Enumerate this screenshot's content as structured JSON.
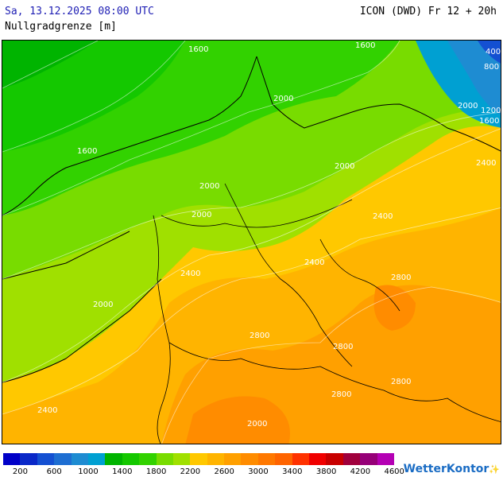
{
  "header": {
    "timestamp": "Sa, 13.12.2025 08:00 UTC",
    "model_run": "ICON (DWD) Fr 12 + 20h",
    "parameter": "Nullgradgrenze [m]"
  },
  "map": {
    "contour_labels": [
      {
        "text": "1600"
      },
      {
        "text": "1600"
      },
      {
        "text": "1600"
      },
      {
        "text": "400"
      },
      {
        "text": "800"
      },
      {
        "text": "1200"
      },
      {
        "text": "1600"
      },
      {
        "text": "2000"
      },
      {
        "text": "2000"
      },
      {
        "text": "2000"
      },
      {
        "text": "2000"
      },
      {
        "text": "2000"
      },
      {
        "text": "2400"
      },
      {
        "text": "2400"
      },
      {
        "text": "2400"
      },
      {
        "text": "2400"
      },
      {
        "text": "2800"
      },
      {
        "text": "2800"
      },
      {
        "text": "2800"
      },
      {
        "text": "2800"
      },
      {
        "text": "2800"
      },
      {
        "text": "2400"
      },
      {
        "text": "2000"
      },
      {
        "text": "2000"
      }
    ]
  },
  "legend": {
    "colors": [
      "#0000c8",
      "#0a28c8",
      "#1450d2",
      "#1e6ed2",
      "#1e8cd2",
      "#00a0d2",
      "#00b400",
      "#14c800",
      "#32d200",
      "#78dc00",
      "#a0e000",
      "#ffc800",
      "#ffb400",
      "#ffa000",
      "#ff8c00",
      "#ff7800",
      "#ff6400",
      "#ff3200",
      "#f00000",
      "#c80000",
      "#a0003c",
      "#960078",
      "#b400b4"
    ],
    "tick_labels": [
      "200",
      "600",
      "1000",
      "1400",
      "1800",
      "2200",
      "2600",
      "3000",
      "3400",
      "3800",
      "4200",
      "4600"
    ]
  },
  "branding": {
    "logo_text": "WetterKontor"
  }
}
